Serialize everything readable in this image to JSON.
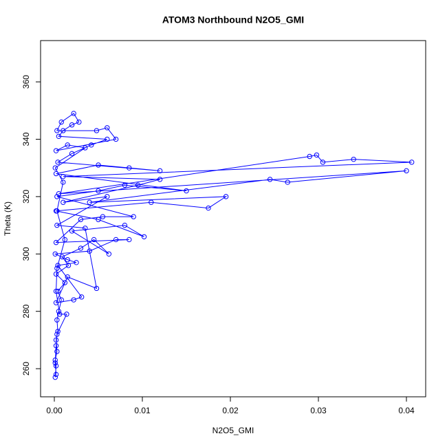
{
  "chart_data": {
    "type": "line",
    "title": "ATOM3 Northbound N2O5_GMI",
    "x_label": "N2O5_GMI",
    "y_label": "Theta (K)",
    "color": "#0000ff",
    "x": [
      0.0001,
      0.0002,
      0.0001,
      0.0003,
      0.0002,
      0.0004,
      0.0003,
      0.0005,
      0.0008,
      0.0004,
      0.0012,
      0.0002,
      0.0016,
      0.0009,
      0.003,
      0.0045,
      0.0062,
      0.002,
      0.008,
      0.0102,
      0.005,
      0.0002,
      0.011,
      0.0175,
      0.0195,
      0.004,
      0.0245,
      0.0265,
      0.04,
      0.0005,
      0.029,
      0.0298,
      0.0305,
      0.034,
      0.0406,
      0.001,
      0.012,
      0.0095,
      0.001,
      0.006,
      0.0003,
      0.0035,
      0.0048,
      0.0015,
      0.0002,
      0.0022,
      0.0031,
      0.0004,
      0.0025,
      0.0015,
      0.0001,
      0.004,
      0.007,
      0.0085,
      0.0002,
      0.003,
      0.0055,
      0.009,
      0.0003,
      0.005,
      0.008,
      0.015,
      0.0002,
      0.005,
      0.0085,
      0.012,
      0.0004,
      0.002,
      0.0042,
      0.006,
      0.0005,
      0.001,
      0.002,
      0.0028,
      0.0022,
      0.0008,
      0.0003,
      0.0048,
      0.006,
      0.007,
      0.0002,
      0.0015,
      0.0035,
      0.0001,
      0.001,
      0.0003,
      0.0012,
      0.0003,
      0.0002,
      0.0006,
      0.0014,
      0.0003,
      0.0002,
      0.0001,
      0.0002
    ],
    "values": [
      257,
      261,
      263,
      266,
      270,
      273,
      277,
      280,
      284,
      287,
      290,
      293,
      296,
      299,
      302,
      305,
      300,
      308,
      310,
      306,
      312,
      315,
      318,
      316,
      320,
      318,
      326,
      325,
      329,
      321,
      334,
      334.5,
      332,
      333,
      332,
      327,
      326,
      324,
      318,
      320,
      310,
      309,
      288,
      292,
      283,
      284,
      285,
      296,
      297,
      298,
      300,
      301,
      305,
      305,
      304,
      312,
      313,
      313,
      320,
      322,
      324,
      322,
      328,
      331,
      330,
      329,
      332,
      335,
      338,
      340,
      341,
      343,
      345,
      346,
      349,
      346,
      343,
      343,
      344,
      340,
      336,
      338,
      337,
      330,
      325,
      315,
      305,
      295,
      287,
      279,
      279,
      272,
      268,
      262,
      258
    ],
    "xlim": [
      -0.0015625,
      0.0421875
    ],
    "ylim": [
      250.2,
      374.4
    ],
    "xticks": [
      {
        "value": 0,
        "label": "0.00"
      },
      0.01,
      0.02,
      0.03,
      0.04
    ],
    "yticks": [
      260,
      280,
      300,
      320,
      340,
      360
    ]
  }
}
